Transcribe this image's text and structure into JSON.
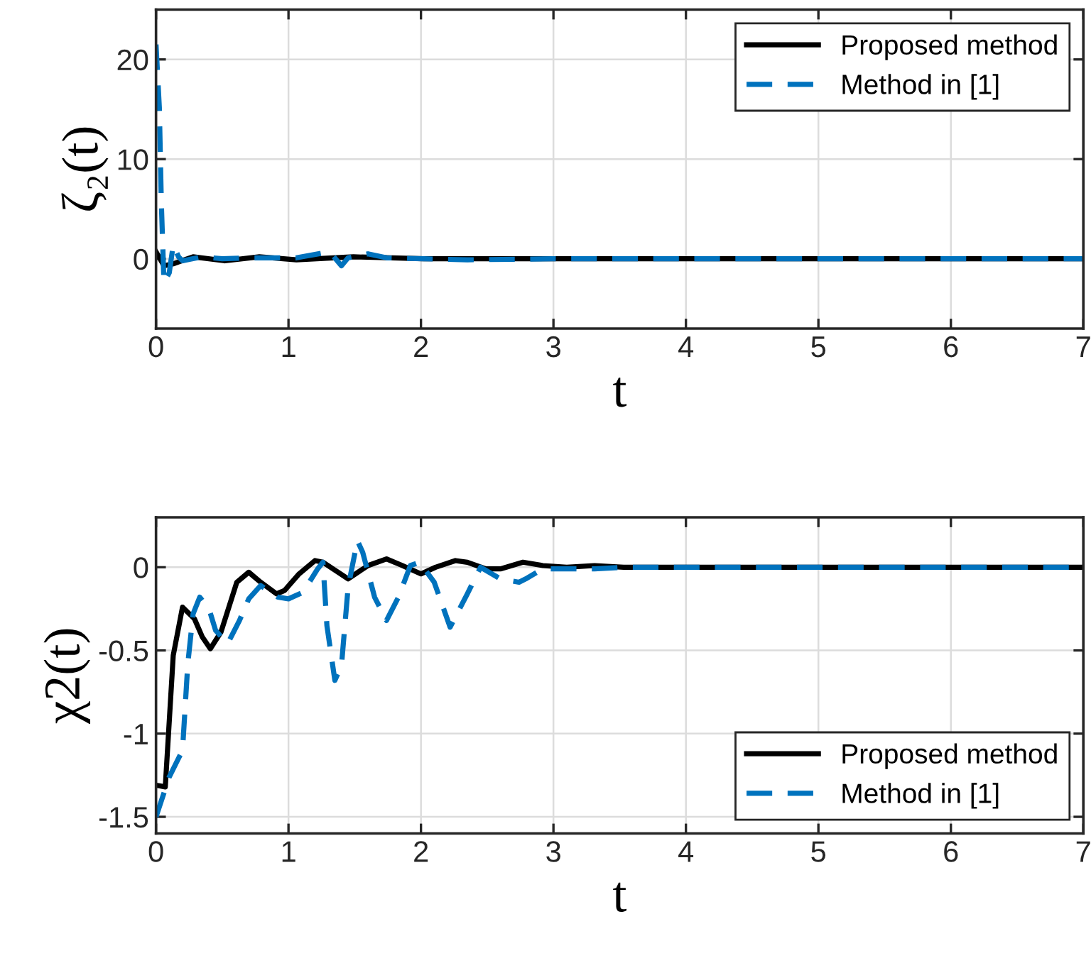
{
  "chart_data": [
    {
      "type": "line",
      "xlabel": "t",
      "ylabel": "ζ₂(t)",
      "xlim": [
        0,
        7
      ],
      "ylim": [
        -7,
        25
      ],
      "xticks": [
        0,
        1,
        2,
        3,
        4,
        5,
        6,
        7
      ],
      "yticks": [
        0,
        10,
        20
      ],
      "grid": true,
      "legend": "top right",
      "series": [
        {
          "name": "Proposed method",
          "color": "#000000",
          "line_style": "solid",
          "x": [
            0,
            0.06,
            0.13,
            0.28,
            0.52,
            0.78,
            1.06,
            1.49,
            2.02,
            3,
            7
          ],
          "values": [
            0.7,
            -0.7,
            -0.5,
            0.2,
            -0.2,
            0.2,
            -0.1,
            0.2,
            0,
            0,
            0
          ]
        },
        {
          "name": "Method in [1]",
          "color": "#0072bd",
          "line_style": "dashed",
          "x": [
            0,
            0.025,
            0.04,
            0.06,
            0.1,
            0.13,
            0.17,
            0.2,
            0.35,
            0.5,
            0.7,
            1.06,
            1.31,
            1.4,
            1.45,
            1.6,
            1.74,
            2.02,
            2.35,
            3,
            7
          ],
          "values": [
            21.5,
            15.2,
            5.7,
            -2.4,
            -1.4,
            1.4,
            0.2,
            -0.2,
            0.2,
            0,
            0.1,
            0.1,
            0.7,
            -0.7,
            0.1,
            0.5,
            0.1,
            0,
            -0.1,
            0,
            0
          ]
        }
      ]
    },
    {
      "type": "line",
      "xlabel": "t",
      "ylabel": "χ2(t)",
      "xlim": [
        0,
        7
      ],
      "ylim": [
        -1.6,
        0.3
      ],
      "xticks": [
        0,
        1,
        2,
        3,
        4,
        5,
        6,
        7
      ],
      "yticks": [
        {
          "value": -1.5,
          "label": "-1.5"
        },
        {
          "value": -1,
          "label": "-1"
        },
        {
          "value": -0.5,
          "label": "-0.5"
        },
        0
      ],
      "grid": true,
      "legend": "bottom right",
      "series": [
        {
          "name": "Proposed method",
          "color": "#000000",
          "line_style": "solid",
          "x": [
            0,
            0.07,
            0.13,
            0.2,
            0.29,
            0.35,
            0.41,
            0.49,
            0.61,
            0.7,
            0.79,
            0.91,
            0.97,
            1.08,
            1.2,
            1.26,
            1.45,
            1.6,
            1.74,
            1.86,
            2.0,
            2.11,
            2.26,
            2.35,
            2.49,
            2.6,
            2.77,
            2.92,
            3.1,
            3.31,
            3.53,
            7
          ],
          "values": [
            -1.31,
            -1.32,
            -0.53,
            -0.24,
            -0.31,
            -0.42,
            -0.49,
            -0.39,
            -0.09,
            -0.03,
            -0.09,
            -0.16,
            -0.14,
            -0.04,
            0.04,
            0.03,
            -0.07,
            0.01,
            0.05,
            0.01,
            -0.04,
            0,
            0.04,
            0.03,
            -0.01,
            -0.01,
            0.03,
            0.01,
            0,
            0.01,
            0,
            0
          ]
        },
        {
          "name": "Method in [1]",
          "color": "#0072bd",
          "line_style": "dashed",
          "x": [
            0,
            0.1,
            0.2,
            0.24,
            0.28,
            0.33,
            0.4,
            0.45,
            0.54,
            0.63,
            0.7,
            0.79,
            0.92,
            1.0,
            1.11,
            1.22,
            1.26,
            1.29,
            1.35,
            1.4,
            1.45,
            1.52,
            1.56,
            1.65,
            1.74,
            1.83,
            1.92,
            1.99,
            2.1,
            2.22,
            2.35,
            2.45,
            2.6,
            2.74,
            2.79,
            2.92,
            3.1,
            3.31,
            3.53,
            7
          ],
          "values": [
            -1.5,
            -1.26,
            -1.1,
            -0.58,
            -0.28,
            -0.18,
            -0.25,
            -0.38,
            -0.46,
            -0.32,
            -0.19,
            -0.11,
            -0.18,
            -0.19,
            -0.15,
            -0.01,
            0.03,
            -0.35,
            -0.68,
            -0.59,
            -0.12,
            0.16,
            0.09,
            -0.18,
            -0.32,
            -0.18,
            0.01,
            0.03,
            -0.09,
            -0.36,
            -0.16,
            0,
            -0.07,
            -0.09,
            -0.07,
            -0.01,
            -0.01,
            -0.01,
            0,
            0
          ]
        }
      ]
    }
  ]
}
